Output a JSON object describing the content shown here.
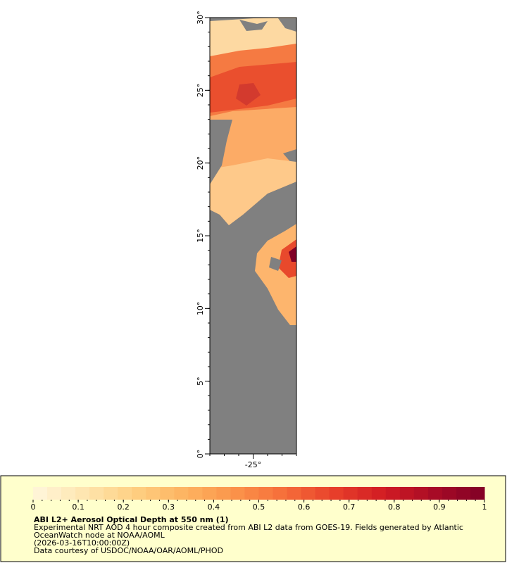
{
  "map": {
    "lat_range": [
      0,
      30
    ],
    "lon_range": [
      -28,
      -22
    ],
    "lat_ticks": [
      {
        "value": 0,
        "label": "0°"
      },
      {
        "value": 5,
        "label": "5°"
      },
      {
        "value": 10,
        "label": "10°"
      },
      {
        "value": 15,
        "label": "15°"
      },
      {
        "value": 20,
        "label": "20°"
      },
      {
        "value": 25,
        "label": "25°"
      },
      {
        "value": 30,
        "label": "30°"
      }
    ],
    "lon_ticks": [
      {
        "value": -25,
        "label": "-25°"
      }
    ]
  },
  "legend": {
    "range": [
      0,
      1
    ],
    "ticks": [
      0,
      0.1,
      0.2,
      0.3,
      0.4,
      0.5,
      0.6,
      0.7,
      0.8,
      0.9,
      1
    ],
    "colors": [
      "#fff6dc",
      "#fee6b0",
      "#fed083",
      "#fdb461",
      "#fb944a",
      "#f66e3a",
      "#e8402a",
      "#d11c23",
      "#a80b26",
      "#800026"
    ],
    "title": "ABI L2+ Aerosol Optical Depth at 550 nm (1)",
    "lines": [
      "Experimental NRT AOD 4 hour composite created from ABI L2 data from GOES-19. Fields generated by Atlantic",
      "OceanWatch node at NOAA/AOML",
      "(2026-03-16T10:00:00Z)",
      "Data courtesy of USDOC/NOAA/OAR/AOML/PHOD"
    ]
  }
}
